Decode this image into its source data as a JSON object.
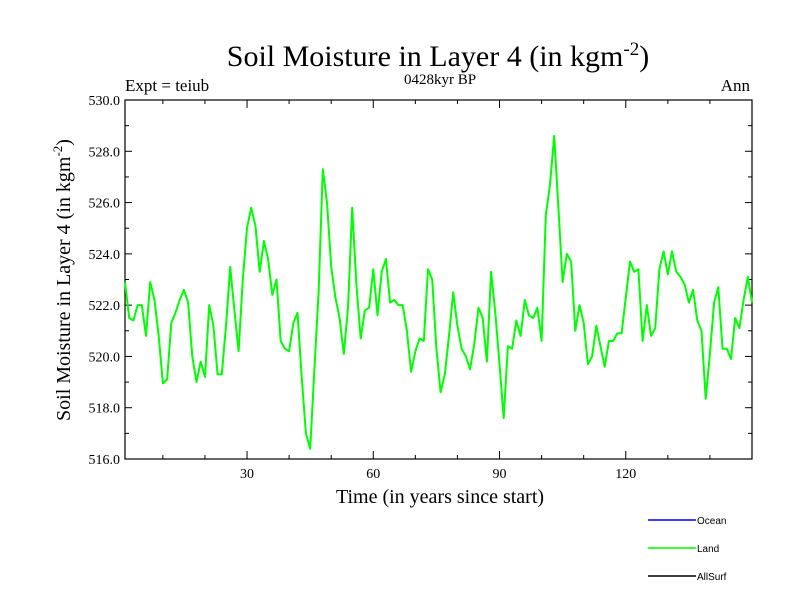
{
  "chart_data": {
    "type": "line",
    "title": "Soil Moisture in Layer 4 (in kgm",
    "title_sup": "-2",
    "title_end": ")",
    "left_label": "Expt = teiub",
    "subtitle": "0428kyr BP",
    "right_label": "Ann",
    "xlabel": "Time (in years since start)",
    "ylabel": "Soil Moisture in Layer 4 (in kgm",
    "ylabel_sup": "-2",
    "ylabel_end": ")",
    "xlim": [
      1,
      150
    ],
    "ylim": [
      516.0,
      530.0
    ],
    "xticks": [
      30,
      60,
      90,
      120
    ],
    "xtick_labels": [
      "30",
      "60",
      "90",
      "120"
    ],
    "yticks": [
      516,
      518,
      520,
      522,
      524,
      526,
      528,
      530
    ],
    "ytick_labels": [
      "516.0",
      "518.0",
      "520.0",
      "522.0",
      "524.0",
      "526.0",
      "528.0",
      "530.0"
    ],
    "x": [
      1,
      2,
      3,
      4,
      5,
      6,
      7,
      8,
      9,
      10,
      11,
      12,
      13,
      14,
      15,
      16,
      17,
      18,
      19,
      20,
      21,
      22,
      23,
      24,
      25,
      26,
      27,
      28,
      29,
      30,
      31,
      32,
      33,
      34,
      35,
      36,
      37,
      38,
      39,
      40,
      41,
      42,
      43,
      44,
      45,
      46,
      47,
      48,
      49,
      50,
      51,
      52,
      53,
      54,
      55,
      56,
      57,
      58,
      59,
      60,
      61,
      62,
      63,
      64,
      65,
      66,
      67,
      68,
      69,
      70,
      71,
      72,
      73,
      74,
      75,
      76,
      77,
      78,
      79,
      80,
      81,
      82,
      83,
      84,
      85,
      86,
      87,
      88,
      89,
      90,
      91,
      92,
      93,
      94,
      95,
      96,
      97,
      98,
      99,
      100,
      101,
      102,
      103,
      104,
      105,
      106,
      107,
      108,
      109,
      110,
      111,
      112,
      113,
      114,
      115,
      116,
      117,
      118,
      119,
      120,
      121,
      122,
      123,
      124,
      125,
      126,
      127,
      128,
      129,
      130,
      131,
      132,
      133,
      134,
      135,
      136,
      137,
      138,
      139,
      140,
      141,
      142,
      143,
      144,
      145,
      146,
      147,
      148,
      149,
      150
    ],
    "series": [
      {
        "name": "Land",
        "color": "#00ff00",
        "values": [
          522.9,
          521.5,
          521.4,
          522.0,
          522.0,
          520.8,
          522.9,
          522.2,
          520.8,
          518.95,
          519.1,
          521.3,
          521.7,
          522.2,
          522.6,
          522.1,
          520.0,
          519.0,
          519.8,
          519.2,
          522.0,
          521.2,
          519.3,
          519.3,
          521.2,
          523.5,
          521.8,
          520.2,
          523.0,
          525.0,
          525.8,
          525.1,
          523.3,
          524.5,
          523.8,
          522.4,
          523.0,
          520.6,
          520.3,
          520.2,
          521.3,
          521.7,
          519.2,
          517.0,
          516.4,
          519.5,
          522.5,
          527.3,
          526.0,
          523.5,
          522.3,
          521.5,
          520.1,
          521.9,
          525.8,
          522.8,
          520.7,
          521.8,
          521.9,
          523.4,
          521.6,
          523.3,
          523.8,
          522.1,
          522.2,
          522.0,
          522.0,
          521.0,
          519.4,
          520.2,
          520.7,
          520.6,
          523.4,
          523.0,
          520.3,
          518.6,
          519.3,
          520.8,
          522.5,
          521.2,
          520.3,
          520.0,
          519.5,
          520.5,
          521.9,
          521.5,
          519.8,
          523.3,
          521.7,
          519.7,
          517.6,
          520.4,
          520.3,
          521.4,
          520.8,
          522.2,
          521.6,
          521.5,
          521.9,
          520.6,
          525.5,
          526.7,
          528.6,
          525.8,
          522.9,
          524.0,
          523.7,
          521.0,
          522.0,
          521.3,
          519.7,
          520.0,
          521.2,
          520.4,
          519.6,
          520.6,
          520.6,
          520.9,
          520.9,
          522.3,
          523.7,
          523.3,
          523.4,
          520.6,
          522.0,
          520.8,
          521.1,
          523.4,
          524.1,
          523.2,
          524.1,
          523.3,
          523.1,
          522.8,
          522.1,
          522.6,
          521.4,
          521.0,
          518.35,
          520.1,
          522.1,
          522.7,
          520.3,
          520.3,
          519.9,
          521.5,
          521.1,
          522.2,
          523.1,
          522.1
        ]
      }
    ],
    "legend": [
      {
        "name": "Ocean",
        "color": "#0000ff"
      },
      {
        "name": "Land",
        "color": "#00ff00"
      },
      {
        "name": "AllSurf",
        "color": "#000000"
      }
    ],
    "legend_position": "bottom-right"
  }
}
